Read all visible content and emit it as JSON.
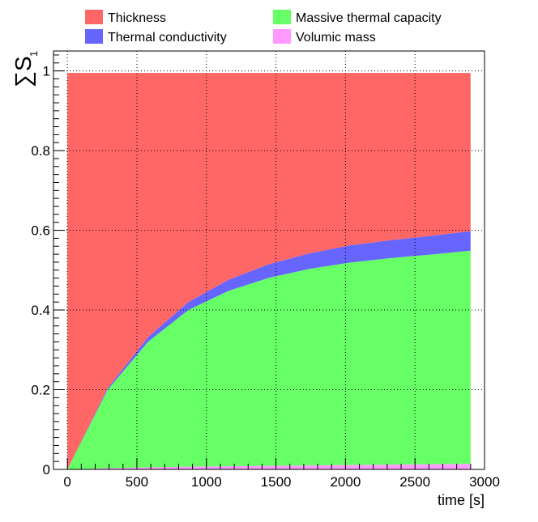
{
  "chart_data": {
    "type": "area",
    "stacked": true,
    "x": [
      0,
      290,
      580,
      870,
      1160,
      1450,
      1740,
      2030,
      2320,
      2610,
      2900
    ],
    "series": [
      {
        "name": "Volumic mass",
        "color": "#ff99ff",
        "values": [
          0.0,
          0.003,
          0.005,
          0.007,
          0.008,
          0.009,
          0.01,
          0.011,
          0.012,
          0.013,
          0.014
        ]
      },
      {
        "name": "Massive thermal capacity",
        "color": "#66ff66",
        "values": [
          0.0,
          0.197,
          0.315,
          0.393,
          0.44,
          0.472,
          0.493,
          0.508,
          0.518,
          0.526,
          0.535
        ]
      },
      {
        "name": "Thermal conductivity",
        "color": "#6666ff",
        "values": [
          0.0,
          0.004,
          0.012,
          0.02,
          0.028,
          0.034,
          0.039,
          0.043,
          0.045,
          0.047,
          0.049
        ]
      },
      {
        "name": "Thickness",
        "color": "#ff6666",
        "values": [
          0.995,
          0.791,
          0.663,
          0.575,
          0.519,
          0.48,
          0.453,
          0.433,
          0.42,
          0.409,
          0.397
        ]
      }
    ],
    "xlabel": "time [s]",
    "ylabel": "∑S",
    "ylabel_subscript": "1",
    "xlim": [
      -100,
      3000
    ],
    "ylim": [
      0,
      1.05
    ],
    "xticks": [
      "0",
      "500",
      "1000",
      "1500",
      "2000",
      "2500",
      "3000"
    ],
    "yticks": [
      "0",
      "0.2",
      "0.4",
      "0.6",
      "0.8",
      "1"
    ],
    "grid": true,
    "legend": {
      "placement": "top",
      "entries": [
        {
          "label": "Thickness",
          "color": "#ff6666"
        },
        {
          "label": "Thermal conductivity",
          "color": "#6666ff"
        },
        {
          "label": "Massive thermal capacity",
          "color": "#66ff66"
        },
        {
          "label": "Volumic mass",
          "color": "#ff99ff"
        }
      ]
    }
  }
}
